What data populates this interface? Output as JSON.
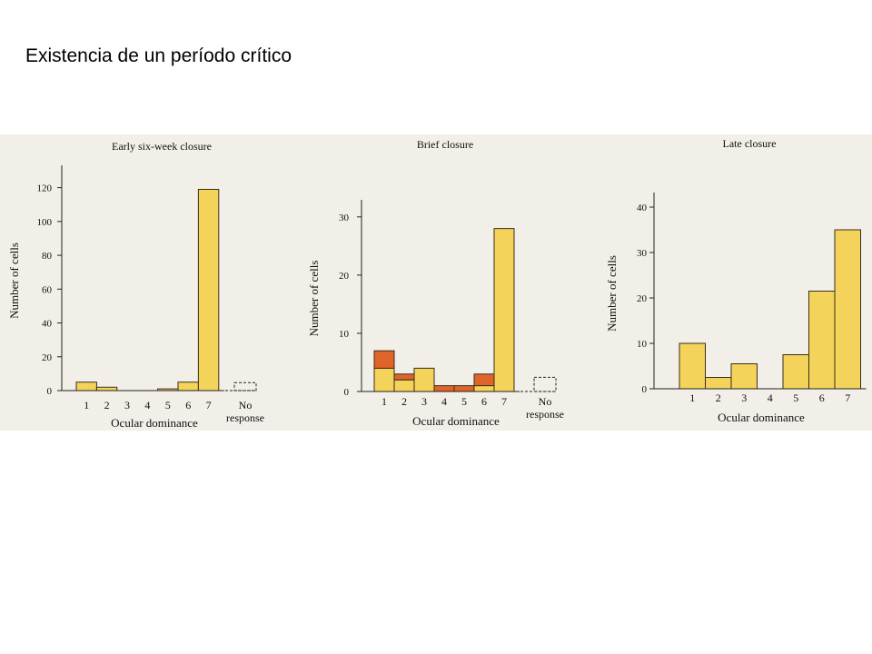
{
  "slide_title": "Existencia de un período crítico",
  "colors": {
    "bar_yellow": "#f3d35a",
    "bar_orange": "#e0642a",
    "bar_stroke": "#3a2e1c",
    "figure_bg": "#f2efe8"
  },
  "chart_data": [
    {
      "type": "bar",
      "title": "Early six-week closure",
      "xlabel": "Ocular dominance",
      "ylabel": "Number of cells",
      "categories": [
        "1",
        "2",
        "3",
        "4",
        "5",
        "6",
        "7"
      ],
      "ticks": [
        0,
        20,
        40,
        60,
        80,
        100,
        120
      ],
      "ylim": [
        0,
        130
      ],
      "series": [
        {
          "values": [
            5,
            2,
            0,
            0,
            1,
            5,
            119
          ]
        }
      ],
      "no_response_label": [
        "No",
        "response"
      ],
      "no_response_value": 1.5
    },
    {
      "type": "bar",
      "title": "Brief closure",
      "xlabel": "Ocular dominance",
      "ylabel": "Number of cells",
      "categories": [
        "1",
        "2",
        "3",
        "4",
        "5",
        "6",
        "7"
      ],
      "ticks": [
        0,
        10,
        20,
        30
      ],
      "ylim": [
        0,
        32
      ],
      "series": [
        {
          "values": [
            4,
            2,
            4,
            0,
            0,
            1,
            28
          ]
        },
        {
          "values": [
            3,
            1,
            0,
            1,
            1,
            2,
            0
          ]
        }
      ],
      "no_response_label": [
        "No",
        "response"
      ],
      "no_response_value": 1.5
    },
    {
      "type": "bar",
      "title": "Late closure",
      "xlabel": "Ocular dominance",
      "ylabel": "Number of cells",
      "categories": [
        "1",
        "2",
        "3",
        "4",
        "5",
        "6",
        "7"
      ],
      "ticks": [
        0,
        10,
        20,
        30,
        40
      ],
      "ylim": [
        0,
        42
      ],
      "series": [
        {
          "values": [
            10,
            2.5,
            5.5,
            0,
            7.5,
            21.5,
            35
          ]
        }
      ]
    }
  ]
}
